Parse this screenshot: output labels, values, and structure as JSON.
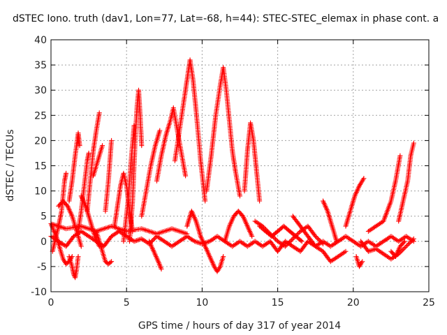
{
  "chart_data": {
    "type": "scatter",
    "title": "dSTEC Iono. truth (dav1, Lon=77, Lat=-68, h=44): STEC-STEC_elemax in phase cont. a",
    "xlabel": "GPS time / hours of day 317 of year 2014",
    "ylabel": "dSTEC  / TECUs",
    "xlim": [
      0,
      25
    ],
    "ylim": [
      -10,
      40
    ],
    "xticks": [
      0,
      5,
      10,
      15,
      20,
      25
    ],
    "yticks": [
      -10,
      -5,
      0,
      5,
      10,
      15,
      20,
      25,
      30,
      35,
      40
    ],
    "grid": true,
    "marker": "+",
    "color": "#ff0000",
    "series": [
      {
        "points": [
          [
            0.0,
            3.5
          ],
          [
            0.2,
            2.0
          ],
          [
            0.4,
            0.5
          ],
          [
            0.6,
            -1.5
          ],
          [
            0.8,
            -3.5
          ],
          [
            1.0,
            -4.5
          ],
          [
            1.2,
            -4.0
          ],
          [
            1.4,
            -3.0
          ]
        ]
      },
      {
        "points": [
          [
            0.1,
            -2.0
          ],
          [
            0.3,
            0.5
          ],
          [
            0.5,
            3.0
          ],
          [
            0.7,
            6.0
          ],
          [
            0.8,
            9.0
          ],
          [
            0.9,
            12.0
          ],
          [
            1.0,
            13.5
          ]
        ]
      },
      {
        "points": [
          [
            0.5,
            7.0
          ],
          [
            0.8,
            8.0
          ],
          [
            1.1,
            7.0
          ],
          [
            1.4,
            5.0
          ],
          [
            1.6,
            3.0
          ],
          [
            1.8,
            1.0
          ],
          [
            2.0,
            -1.0
          ]
        ]
      },
      {
        "points": [
          [
            1.2,
            8.0
          ],
          [
            1.4,
            12.0
          ],
          [
            1.6,
            17.0
          ],
          [
            1.8,
            21.5
          ],
          [
            1.9,
            19.0
          ]
        ]
      },
      {
        "points": [
          [
            1.2,
            -3.0
          ],
          [
            1.4,
            -5.0
          ],
          [
            1.5,
            -6.5
          ],
          [
            1.6,
            -7.2
          ],
          [
            1.7,
            -5.5
          ],
          [
            1.8,
            -3.0
          ]
        ]
      },
      {
        "points": [
          [
            1.8,
            2.0
          ],
          [
            2.0,
            6.0
          ],
          [
            2.2,
            11.0
          ],
          [
            2.4,
            16.0
          ],
          [
            2.5,
            17.5
          ]
        ]
      },
      {
        "points": [
          [
            2.0,
            9.0
          ],
          [
            2.3,
            7.0
          ],
          [
            2.6,
            4.0
          ],
          [
            2.9,
            1.0
          ],
          [
            3.2,
            -1.0
          ]
        ]
      },
      {
        "points": [
          [
            2.4,
            6.0
          ],
          [
            2.6,
            12.0
          ],
          [
            2.8,
            18.0
          ],
          [
            3.0,
            22.0
          ],
          [
            3.2,
            25.5
          ]
        ]
      },
      {
        "points": [
          [
            2.8,
            13.0
          ],
          [
            3.0,
            15.0
          ],
          [
            3.2,
            17.0
          ],
          [
            3.4,
            19.0
          ]
        ]
      },
      {
        "points": [
          [
            3.0,
            2.0
          ],
          [
            3.2,
            0.0
          ],
          [
            3.4,
            -2.0
          ],
          [
            3.6,
            -4.0
          ],
          [
            3.8,
            -4.5
          ],
          [
            4.0,
            -4.0
          ]
        ]
      },
      {
        "points": [
          [
            3.6,
            6.0
          ],
          [
            3.8,
            12.0
          ],
          [
            4.0,
            20.0
          ]
        ]
      },
      {
        "points": [
          [
            4.2,
            3.0
          ],
          [
            4.4,
            7.0
          ],
          [
            4.6,
            11.0
          ],
          [
            4.8,
            13.5
          ],
          [
            5.0,
            11.0
          ],
          [
            5.2,
            6.0
          ],
          [
            5.4,
            2.0
          ]
        ]
      },
      {
        "points": [
          [
            5.2,
            0.0
          ],
          [
            5.4,
            8.0
          ],
          [
            5.5,
            15.0
          ],
          [
            5.6,
            22.0
          ],
          [
            5.7,
            27.0
          ],
          [
            5.8,
            30.0
          ],
          [
            5.9,
            25.0
          ],
          [
            6.0,
            19.0
          ]
        ]
      },
      {
        "points": [
          [
            4.8,
            0.0
          ],
          [
            5.1,
            8.0
          ],
          [
            5.3,
            16.0
          ],
          [
            5.5,
            23.0
          ]
        ]
      },
      {
        "points": [
          [
            6.0,
            5.0
          ],
          [
            6.3,
            10.0
          ],
          [
            6.6,
            15.0
          ],
          [
            6.9,
            19.0
          ],
          [
            7.2,
            22.0
          ]
        ]
      },
      {
        "points": [
          [
            6.5,
            0.0
          ],
          [
            6.8,
            -2.0
          ],
          [
            7.1,
            -4.0
          ],
          [
            7.3,
            -5.5
          ]
        ]
      },
      {
        "points": [
          [
            7.0,
            12.0
          ],
          [
            7.3,
            17.0
          ],
          [
            7.6,
            21.0
          ],
          [
            7.9,
            24.0
          ],
          [
            8.1,
            26.5
          ],
          [
            8.3,
            23.0
          ],
          [
            8.6,
            18.0
          ],
          [
            8.9,
            13.0
          ]
        ]
      },
      {
        "points": [
          [
            8.2,
            16.0
          ],
          [
            8.5,
            22.0
          ],
          [
            8.8,
            28.0
          ],
          [
            9.0,
            32.0
          ],
          [
            9.2,
            36.0
          ],
          [
            9.4,
            32.0
          ],
          [
            9.6,
            26.0
          ],
          [
            9.9,
            16.0
          ],
          [
            10.2,
            8.0
          ]
        ]
      },
      {
        "points": [
          [
            9.0,
            3.0
          ],
          [
            9.3,
            6.0
          ],
          [
            9.6,
            4.0
          ],
          [
            9.9,
            1.0
          ],
          [
            10.2,
            -1.0
          ],
          [
            10.5,
            -3.0
          ],
          [
            10.8,
            -5.0
          ],
          [
            11.0,
            -6.0
          ],
          [
            11.2,
            -5.0
          ],
          [
            11.4,
            -3.0
          ]
        ]
      },
      {
        "points": [
          [
            10.3,
            10.0
          ],
          [
            10.6,
            17.0
          ],
          [
            10.9,
            25.0
          ],
          [
            11.2,
            31.0
          ],
          [
            11.4,
            34.5
          ],
          [
            11.6,
            30.0
          ],
          [
            11.8,
            24.0
          ],
          [
            12.0,
            18.0
          ],
          [
            12.2,
            14.0
          ],
          [
            12.5,
            9.0
          ]
        ]
      },
      {
        "points": [
          [
            11.5,
            0.0
          ],
          [
            11.8,
            3.0
          ],
          [
            12.1,
            5.0
          ],
          [
            12.4,
            6.0
          ],
          [
            12.7,
            5.0
          ],
          [
            13.0,
            3.0
          ],
          [
            13.3,
            1.0
          ]
        ]
      },
      {
        "points": [
          [
            12.8,
            10.0
          ],
          [
            13.0,
            18.0
          ],
          [
            13.2,
            23.5
          ],
          [
            13.4,
            20.0
          ],
          [
            13.6,
            14.0
          ],
          [
            13.8,
            8.0
          ]
        ]
      },
      {
        "points": [
          [
            13.8,
            3.0
          ],
          [
            14.2,
            2.0
          ],
          [
            14.6,
            1.0
          ],
          [
            15.0,
            2.0
          ],
          [
            15.4,
            3.0
          ],
          [
            15.8,
            2.0
          ],
          [
            16.2,
            1.0
          ],
          [
            16.6,
            0.0
          ]
        ]
      },
      {
        "points": [
          [
            16.0,
            5.0
          ],
          [
            16.5,
            3.0
          ],
          [
            17.0,
            1.0
          ],
          [
            17.5,
            -1.0
          ],
          [
            18.0,
            -2.0
          ],
          [
            18.5,
            -4.0
          ],
          [
            19.0,
            -3.0
          ],
          [
            19.5,
            -2.0
          ]
        ]
      },
      {
        "points": [
          [
            18.0,
            8.0
          ],
          [
            18.3,
            6.0
          ],
          [
            18.6,
            3.0
          ],
          [
            18.9,
            0.0
          ]
        ]
      },
      {
        "points": [
          [
            19.5,
            3.0
          ],
          [
            19.8,
            6.0
          ],
          [
            20.1,
            9.0
          ],
          [
            20.4,
            11.0
          ],
          [
            20.7,
            12.5
          ]
        ]
      },
      {
        "points": [
          [
            20.2,
            -3.0
          ],
          [
            20.4,
            -5.0
          ],
          [
            20.6,
            -4.0
          ]
        ]
      },
      {
        "points": [
          [
            21.0,
            2.0
          ],
          [
            21.5,
            3.0
          ],
          [
            22.0,
            4.0
          ],
          [
            22.5,
            8.0
          ],
          [
            22.8,
            12.0
          ],
          [
            23.1,
            17.0
          ]
        ]
      },
      {
        "points": [
          [
            22.5,
            -2.0
          ],
          [
            22.8,
            -3.0
          ],
          [
            23.1,
            -1.0
          ],
          [
            23.4,
            0.0
          ]
        ]
      },
      {
        "points": [
          [
            23.0,
            4.0
          ],
          [
            23.3,
            8.0
          ],
          [
            23.6,
            12.0
          ],
          [
            23.8,
            17.0
          ],
          [
            24.0,
            19.5
          ]
        ]
      },
      {
        "points": [
          [
            0.0,
            1.0
          ],
          [
            0.5,
            0.0
          ],
          [
            1.0,
            -1.0
          ],
          [
            1.5,
            1.0
          ],
          [
            2.0,
            2.0
          ],
          [
            2.5,
            1.0
          ],
          [
            3.0,
            0.0
          ],
          [
            3.5,
            -1.0
          ],
          [
            4.0,
            1.0
          ],
          [
            4.5,
            2.0
          ],
          [
            5.0,
            1.0
          ],
          [
            5.5,
            0.0
          ],
          [
            6.0,
            0.5
          ],
          [
            6.5,
            -0.5
          ],
          [
            7.0,
            1.0
          ],
          [
            7.5,
            0.0
          ],
          [
            8.0,
            -1.0
          ],
          [
            8.5,
            0.0
          ],
          [
            9.0,
            1.0
          ],
          [
            9.5,
            0.0
          ],
          [
            10.0,
            -0.5
          ],
          [
            10.5,
            0.0
          ],
          [
            11.0,
            1.0
          ],
          [
            11.5,
            0.0
          ],
          [
            12.0,
            -1.0
          ],
          [
            12.5,
            0.0
          ],
          [
            13.0,
            -1.0
          ],
          [
            13.5,
            0.0
          ],
          [
            14.0,
            -1.0
          ],
          [
            14.5,
            0.0
          ],
          [
            15.0,
            -2.0
          ],
          [
            15.5,
            0.0
          ],
          [
            16.0,
            -1.0
          ],
          [
            16.5,
            -2.0
          ],
          [
            17.0,
            0.0
          ],
          [
            17.5,
            -1.0
          ],
          [
            18.0,
            0.0
          ],
          [
            18.5,
            -1.0
          ],
          [
            19.0,
            0.0
          ],
          [
            19.5,
            1.0
          ],
          [
            20.0,
            0.0
          ],
          [
            20.5,
            -1.0
          ],
          [
            21.0,
            0.0
          ],
          [
            21.5,
            -1.0
          ],
          [
            22.0,
            0.0
          ],
          [
            22.5,
            1.0
          ],
          [
            23.0,
            0.0
          ],
          [
            23.5,
            1.0
          ],
          [
            24.0,
            0.0
          ]
        ]
      },
      {
        "points": [
          [
            0.0,
            3.5
          ],
          [
            1.0,
            2.5
          ],
          [
            2.0,
            3.0
          ],
          [
            3.0,
            2.0
          ],
          [
            4.0,
            3.0
          ],
          [
            5.0,
            2.0
          ],
          [
            6.0,
            2.5
          ],
          [
            7.0,
            1.5
          ],
          [
            8.0,
            2.5
          ],
          [
            9.0,
            1.5
          ]
        ]
      },
      {
        "points": [
          [
            13.5,
            4.0
          ],
          [
            14.0,
            3.0
          ],
          [
            14.5,
            1.5
          ],
          [
            15.0,
            0.0
          ],
          [
            15.5,
            -1.0
          ],
          [
            16.0,
            0.5
          ],
          [
            16.5,
            2.0
          ],
          [
            17.0,
            3.0
          ],
          [
            17.5,
            1.0
          ],
          [
            18.0,
            -0.5
          ]
        ]
      },
      {
        "points": [
          [
            20.5,
            0.0
          ],
          [
            21.0,
            -2.0
          ],
          [
            21.5,
            -1.5
          ],
          [
            22.0,
            -2.5
          ],
          [
            22.5,
            -3.5
          ],
          [
            23.0,
            -2.5
          ],
          [
            23.5,
            -1.0
          ],
          [
            24.0,
            0.5
          ]
        ]
      }
    ]
  }
}
